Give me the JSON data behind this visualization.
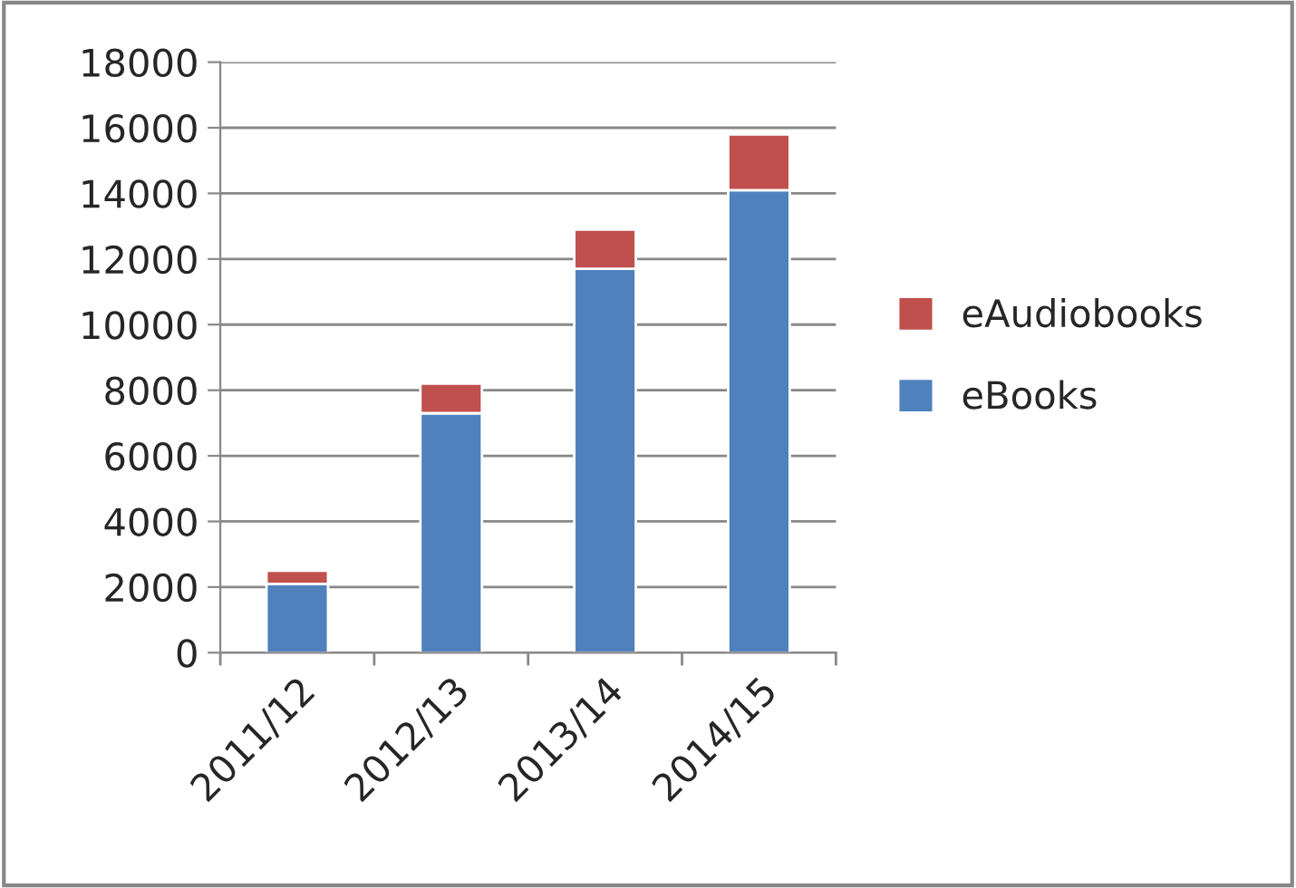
{
  "chart_data": {
    "type": "bar",
    "stacked": true,
    "categories": [
      "2011/12",
      "2012/13",
      "2013/14",
      "2014/15"
    ],
    "series": [
      {
        "name": "eBooks",
        "color": "#4f81bd",
        "values": [
          2100,
          7300,
          11700,
          14100
        ]
      },
      {
        "name": "eAudiobooks",
        "color": "#c0504d",
        "values": [
          400,
          900,
          1200,
          1700
        ]
      }
    ],
    "ylim": [
      0,
      18000
    ],
    "yticks": [
      0,
      2000,
      4000,
      6000,
      8000,
      10000,
      12000,
      14000,
      16000,
      18000
    ],
    "grid": "y",
    "legend": "right"
  }
}
